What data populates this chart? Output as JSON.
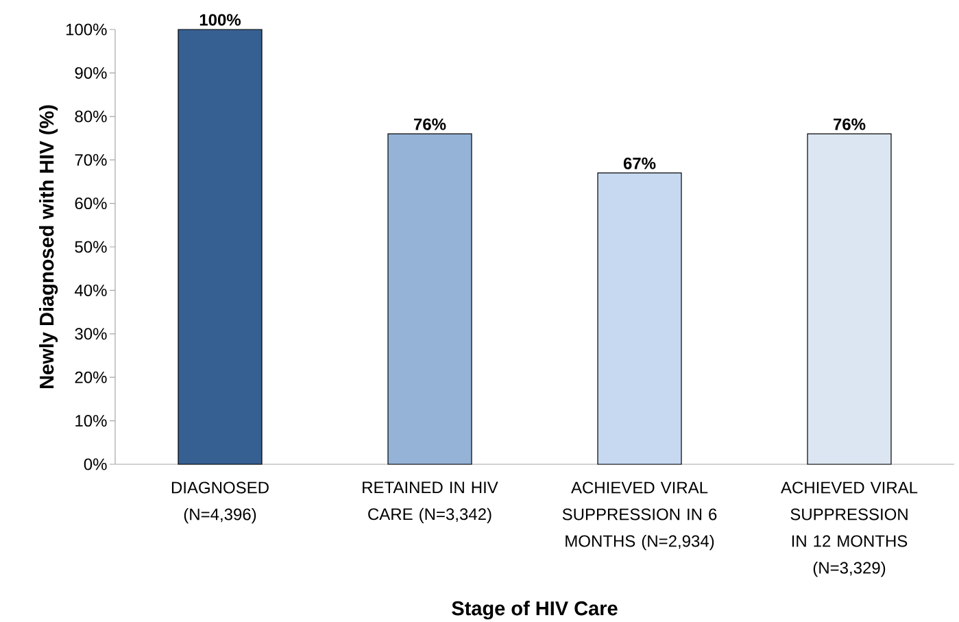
{
  "chart_data": {
    "type": "bar",
    "xlabel": "Stage of HIV Care",
    "ylabel": "Newly Diagnosed with HIV (%)",
    "categories": [
      "DIAGNOSED (N=4,396)",
      "RETAINED IN HIV CARE (N=3,342)",
      "ACHIEVED VIRAL SUPPRESSION IN 6 MONTHS (N=2,934)",
      "ACHIEVED VIRAL SUPPRESSION IN 12 MONTHS (N=3,329)"
    ],
    "values": [
      100,
      76,
      67,
      76
    ],
    "value_labels": [
      "100%",
      "76%",
      "67%",
      "76%"
    ],
    "colors": [
      "#376092",
      "#95b3d7",
      "#c6d9f1",
      "#dce6f2"
    ],
    "ylim": [
      0,
      100
    ],
    "yticks": [
      {
        "value": 0,
        "label": "0%"
      },
      {
        "value": 10,
        "label": "10%"
      },
      {
        "value": 20,
        "label": "20%"
      },
      {
        "value": 30,
        "label": "30%"
      },
      {
        "value": 40,
        "label": "40%"
      },
      {
        "value": 50,
        "label": "50%"
      },
      {
        "value": 60,
        "label": "60%"
      },
      {
        "value": 70,
        "label": "70%"
      },
      {
        "value": 80,
        "label": "80%"
      },
      {
        "value": 90,
        "label": "90%"
      },
      {
        "value": 100,
        "label": "100%"
      }
    ],
    "grid": false
  }
}
